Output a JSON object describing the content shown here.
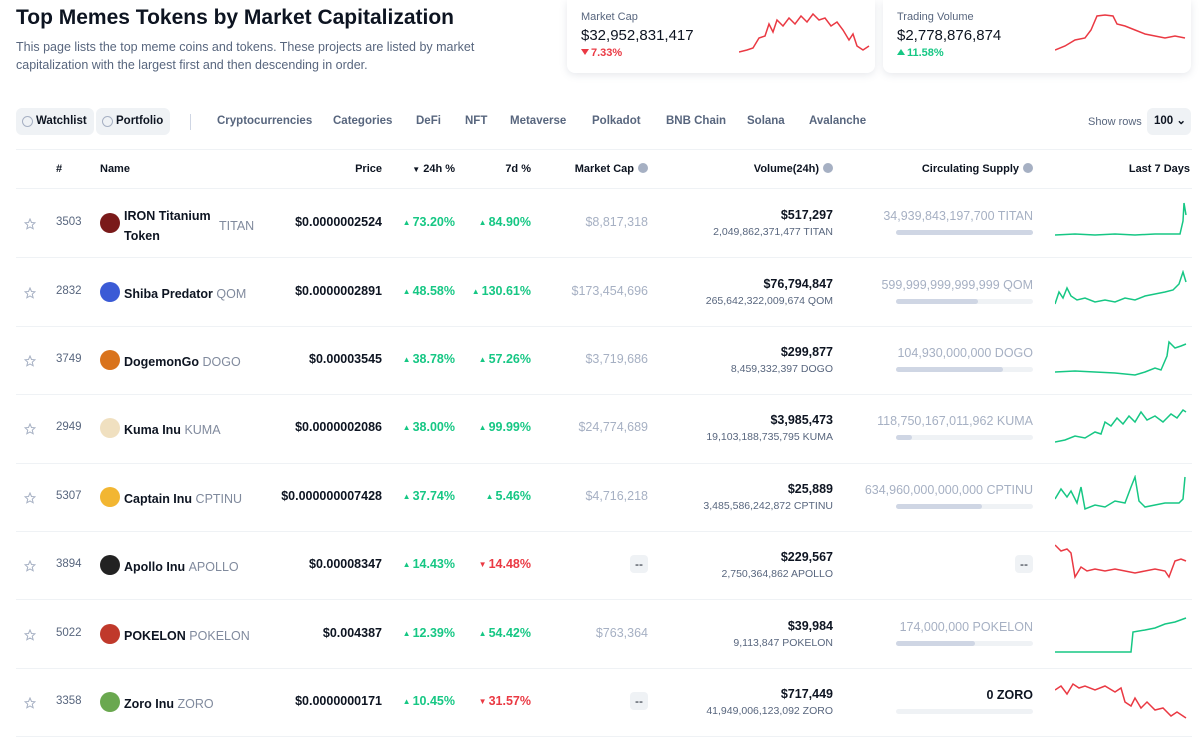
{
  "header": {
    "title": "Top Memes Tokens by Market Capitalization",
    "description": "This page lists the top meme coins and tokens. These projects are listed by market capitalization with the largest first and then descending in order."
  },
  "stats": [
    {
      "label": "Market Cap",
      "value": "$32,952,831,417",
      "change": "7.33%"
    },
    {
      "label": "Trading Volume",
      "value": "$2,778,876,874",
      "change": "11.58%"
    }
  ],
  "tabs": [
    "Watchlist",
    "Portfolio",
    "Cryptocurrencies",
    "Categories",
    "DeFi",
    "NFT",
    "Metaverse",
    "Polkadot",
    "BNB Chain",
    "Solana",
    "Avalanche"
  ],
  "show_rows": {
    "label": "Show rows",
    "value": "100"
  },
  "table": {
    "columns": [
      "#",
      "Name",
      "Price",
      "24h %",
      "7d %",
      "Market Cap",
      "Volume(24h)",
      "Circulating Supply",
      "Last 7 Days"
    ],
    "rows": [
      {
        "rank": "3503",
        "name": "IRON Titanium Token",
        "symbol": "TITAN",
        "price": "$0.0000002524",
        "change_24h": "73.20%",
        "change_7d": "84.90%",
        "market_cap": "$8,817,318",
        "volume": "$517,297",
        "volume_coin": "2,049,862,371,477 TITAN",
        "supply": "34,939,843,197,700 TITAN"
      },
      {
        "rank": "2832",
        "name": "Shiba Predator",
        "symbol": "QOM",
        "price": "$0.0000002891",
        "change_24h": "48.58%",
        "change_7d": "130.61%",
        "market_cap": "$173,454,696",
        "volume": "$76,794,847",
        "volume_coin": "265,642,322,009,674 QOM",
        "supply": "599,999,999,999,999 QOM"
      },
      {
        "rank": "3749",
        "name": "DogemonGo",
        "symbol": "DOGO",
        "price": "$0.00003545",
        "change_24h": "38.78%",
        "change_7d": "57.26%",
        "market_cap": "$3,719,686",
        "volume": "$299,877",
        "volume_coin": "8,459,332,397 DOGO",
        "supply": "104,930,000,000 DOGO"
      },
      {
        "rank": "2949",
        "name": "Kuma Inu",
        "symbol": "KUMA",
        "price": "$0.0000002086",
        "change_24h": "38.00%",
        "change_7d": "99.99%",
        "market_cap": "$24,774,689",
        "volume": "$3,985,473",
        "volume_coin": "19,103,188,735,795 KUMA",
        "supply": "118,750,167,011,962 KUMA"
      },
      {
        "rank": "5307",
        "name": "Captain Inu",
        "symbol": "CPTINU",
        "price": "$0.000000007428",
        "change_24h": "37.74%",
        "change_7d": "5.46%",
        "market_cap": "$4,716,218",
        "volume": "$25,889",
        "volume_coin": "3,485,586,242,872 CPTINU",
        "supply": "634,960,000,000,000 CPTINU"
      },
      {
        "rank": "3894",
        "name": "Apollo Inu",
        "symbol": "APOLLO",
        "price": "$0.00008347",
        "change_24h": "14.43%",
        "change_7d": "14.48%",
        "market_cap": "--",
        "volume": "$229,567",
        "volume_coin": "2,750,364,862 APOLLO",
        "supply": "--"
      },
      {
        "rank": "5022",
        "name": "POKELON",
        "symbol": "POKELON",
        "price": "$0.004387",
        "change_24h": "12.39%",
        "change_7d": "54.42%",
        "market_cap": "$763,364",
        "volume": "$39,984",
        "volume_coin": "9,113,847 POKELON",
        "supply": "174,000,000 POKELON"
      },
      {
        "rank": "3358",
        "name": "Zoro Inu",
        "symbol": "ZORO",
        "price": "$0.0000000171",
        "change_24h": "10.45%",
        "change_7d": "31.57%",
        "market_cap": "--",
        "volume": "$717,449",
        "volume_coin": "41,949,006,123,092 ZORO",
        "supply": "0 ZORO"
      }
    ]
  }
}
